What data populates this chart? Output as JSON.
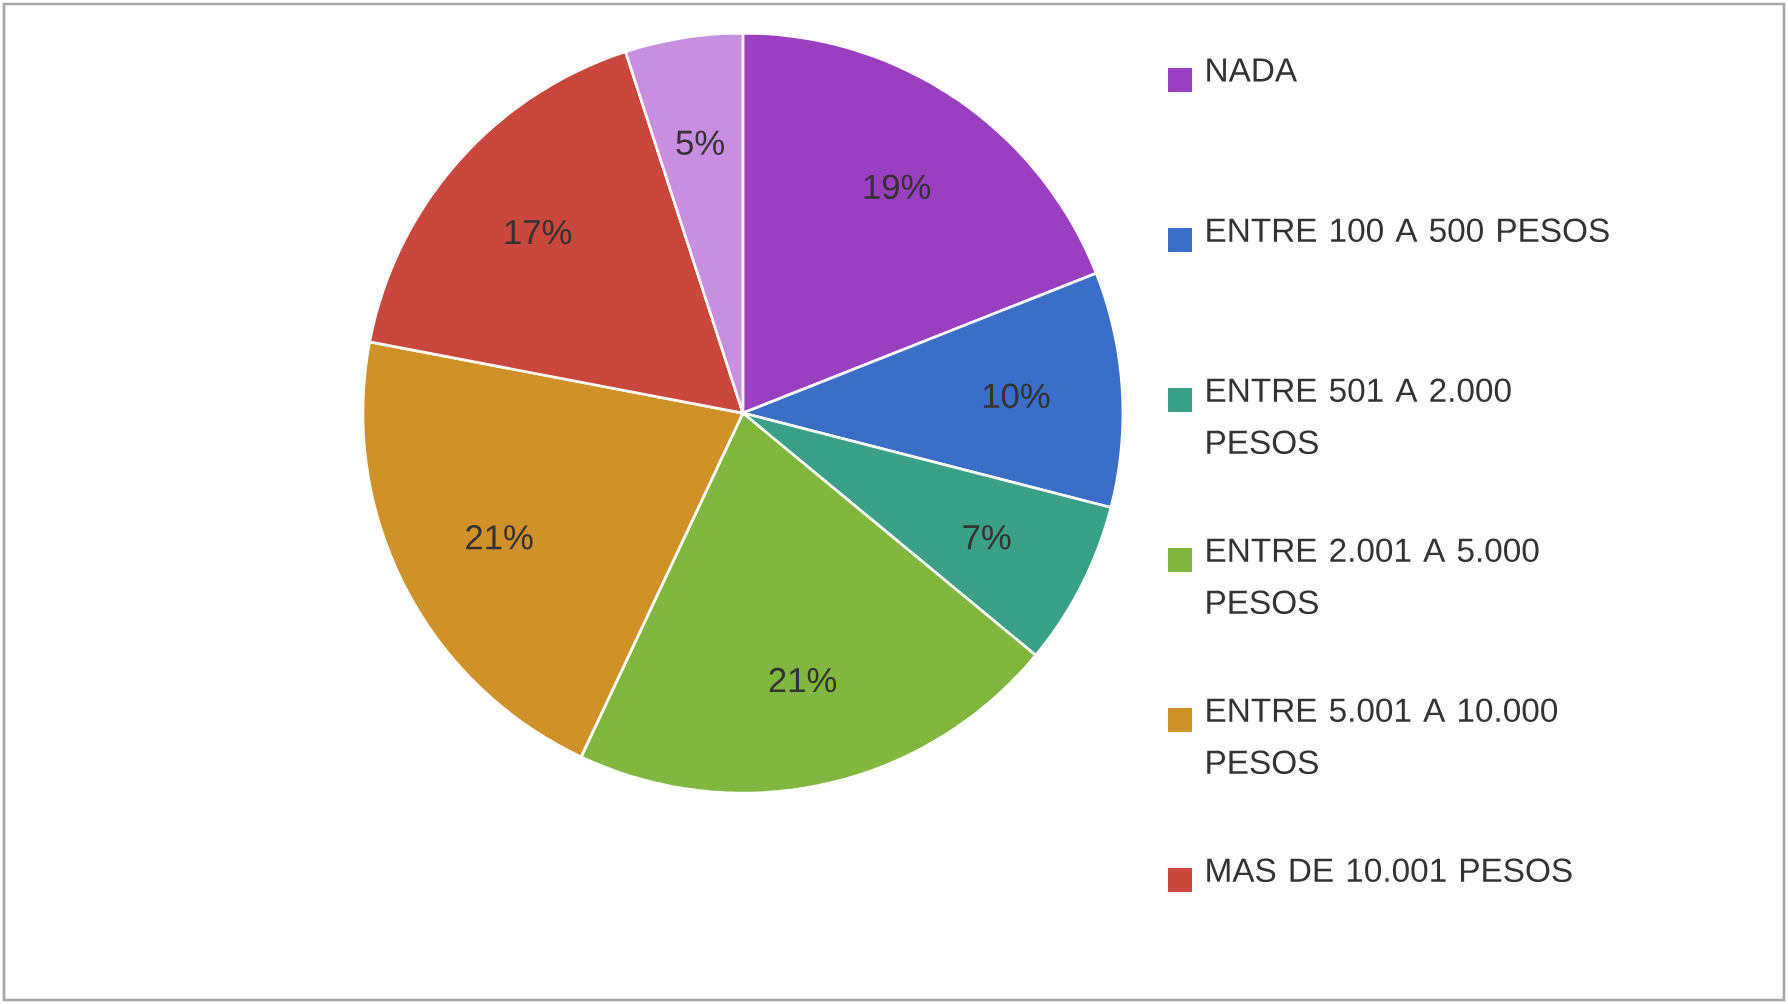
{
  "chart_data": {
    "type": "pie",
    "categories": [
      "NADA",
      "ENTRE 100 A 500 PESOS",
      "ENTRE 501 A 2.000 PESOS",
      "ENTRE 2.001 A 5.000 PESOS",
      "ENTRE 5.001 A 10.000 PESOS",
      "MAS DE 10.001 PESOS",
      null
    ],
    "values": [
      19,
      10,
      7,
      21,
      21,
      17,
      5
    ],
    "value_labels": [
      "19%",
      "10%",
      "7%",
      "21%",
      "21%",
      "17%",
      "5%"
    ],
    "colors": [
      "#9a3fbf",
      "#3b6ec6",
      "#3aa087",
      "#80b83f",
      "#d09129",
      "#c9473c",
      "#c88ee0"
    ],
    "legend": "right"
  }
}
